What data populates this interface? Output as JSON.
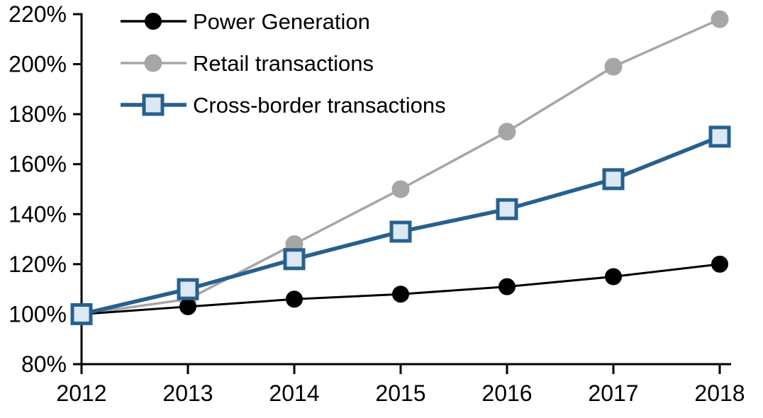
{
  "app": {
    "background_color": "#FFFFFF"
  },
  "chart_data": {
    "type": "line",
    "title": "",
    "xlabel": "",
    "ylabel": "",
    "categories": [
      "2012",
      "2013",
      "2014",
      "2015",
      "2016",
      "2017",
      "2018"
    ],
    "series": [
      {
        "name": "Power Generation",
        "values": [
          100,
          103,
          106,
          108,
          111,
          115,
          120
        ],
        "color": "#000000",
        "line_width": 3,
        "marker": "circle",
        "marker_fill": "#000000",
        "marker_stroke": "#000000",
        "marker_size": 11.5
      },
      {
        "name": "Retail transactions",
        "values": [
          100,
          106,
          128,
          150,
          173,
          199,
          218
        ],
        "color": "#A6A6A6",
        "line_width": 3.5,
        "marker": "circle",
        "marker_fill": "#A6A6A6",
        "marker_stroke": "#A6A6A6",
        "marker_size": 12
      },
      {
        "name": "Cross-border transactions",
        "values": [
          100,
          110,
          122,
          133,
          142,
          154,
          171
        ],
        "color": "#27608D",
        "line_width": 5.5,
        "marker": "square",
        "marker_fill": "#DCE8F4",
        "marker_stroke": "#27608D",
        "marker_size": 13
      }
    ],
    "draw_order": [
      1,
      0,
      2
    ],
    "y_axis": {
      "min": 80,
      "max": 220,
      "step": 20,
      "tick_labels": [
        "80%",
        "100%",
        "120%",
        "140%",
        "160%",
        "180%",
        "200%",
        "220%"
      ],
      "unit": "%"
    },
    "x_axis": {
      "tick_labels": [
        "2012",
        "2013",
        "2014",
        "2015",
        "2016",
        "2017",
        "2018"
      ]
    },
    "legend": {
      "position": "top-left",
      "items": [
        "Power Generation",
        "Retail transactions",
        "Cross-border transactions"
      ]
    },
    "grid": "off",
    "ylim": [
      80,
      220
    ]
  }
}
